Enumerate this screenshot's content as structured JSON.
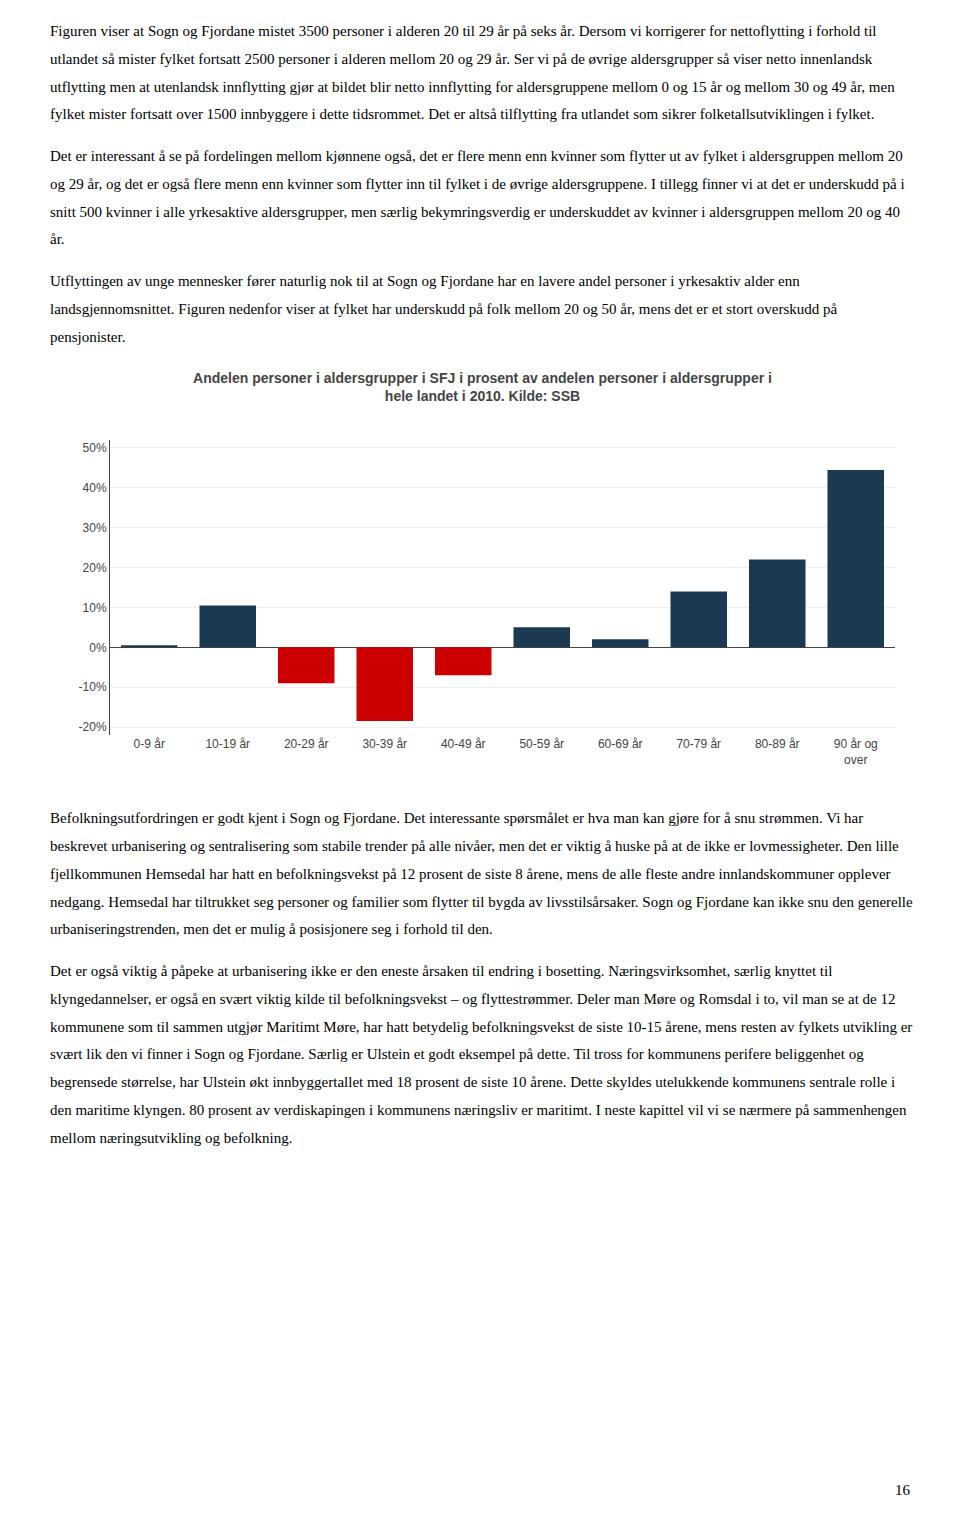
{
  "text_before": [
    "Figuren viser at Sogn og Fjordane mistet 3500 personer i alderen 20 til 29 år på seks år. Dersom vi korrigerer for nettoflytting i forhold til utlandet så mister fylket fortsatt 2500 personer i alderen mellom 20 og 29 år. Ser vi på de øvrige aldersgrupper så viser netto innenlandsk utflytting men at utenlandsk innflytting gjør at bildet blir netto innflytting for aldersgruppene mellom 0 og 15 år og mellom 30 og 49 år, men fylket mister fortsatt over 1500 innbyggere i dette tidsrommet. Det er altså tilflytting fra utlandet som sikrer folketallsutviklingen i fylket.",
    "Det er interessant å se på fordelingen mellom kjønnene også, det er flere menn enn kvinner som flytter ut av fylket i aldersgruppen mellom 20 og 29 år, og det er også flere menn enn kvinner som flytter inn til fylket i de øvrige aldersgruppene. I tillegg finner vi at det er underskudd på i snitt 500 kvinner i alle yrkesaktive aldersgrupper, men særlig bekymringsverdig er underskuddet av kvinner i aldersgruppen mellom 20 og 40 år.",
    "Utflyttingen av unge mennesker fører naturlig nok til at Sogn og Fjordane har en lavere andel personer i yrkesaktiv alder enn landsgjennomsnittet. Figuren nedenfor viser at fylket har underskudd på folk mellom 20 og 50 år, mens det er et stort overskudd på pensjonister."
  ],
  "chart_data": {
    "type": "bar",
    "title": "Andelen personer i aldersgrupper i SFJ i prosent av andelen personer i aldersgrupper i\nhele landet i 2010. Kilde: SSB",
    "categories": [
      "0-9 år",
      "10-19 år",
      "20-29 år",
      "30-39 år",
      "40-49 år",
      "50-59 år",
      "60-69 år",
      "70-79 år",
      "80-89 år",
      "90 år og\nover"
    ],
    "values": [
      0.5,
      10.5,
      -9.0,
      -18.5,
      -7.0,
      5.0,
      2.0,
      14.0,
      22.0,
      44.5
    ],
    "colors": [
      "#1b3a52",
      "#1b3a52",
      "#cc0000",
      "#cc0000",
      "#cc0000",
      "#1b3a52",
      "#1b3a52",
      "#1b3a52",
      "#1b3a52",
      "#1b3a52"
    ],
    "ylim": [
      -22,
      52
    ],
    "yticks": [
      {
        "value": -20,
        "label": "-20%"
      },
      {
        "value": -10,
        "label": "-10%"
      },
      {
        "value": 0,
        "label": "0%"
      },
      {
        "value": 10,
        "label": "10%"
      },
      {
        "value": 20,
        "label": "20%"
      },
      {
        "value": 30,
        "label": "30%"
      },
      {
        "value": 40,
        "label": "40%"
      },
      {
        "value": 50,
        "label": "50%"
      }
    ],
    "grid": true
  },
  "text_after": [
    "Befolkningsutfordringen er godt kjent i Sogn og Fjordane. Det interessante spørsmålet er hva man kan gjøre for å snu strømmen. Vi har beskrevet urbanisering og sentralisering som stabile trender på alle nivåer, men det er viktig å huske på at de ikke er lovmessigheter. Den lille fjellkommunen Hemsedal har hatt en befolkningsvekst på 12 prosent de siste 8 årene, mens de alle fleste andre innlandskommuner opplever nedgang. Hemsedal har tiltrukket seg personer og familier som flytter til bygda av livsstilsårsaker. Sogn og Fjordane kan ikke snu den generelle urbaniseringstrenden, men det er mulig å posisjonere seg i forhold til den.",
    "Det er også viktig å påpeke at urbanisering ikke er den eneste årsaken til endring i bosetting. Næringsvirksomhet, særlig knyttet til klyngedannelser, er også en svært viktig kilde til befolkningsvekst – og flyttestrømmer. Deler man Møre og Romsdal i to, vil man se at de 12 kommunene som til sammen utgjør Maritimt Møre, har hatt betydelig befolkningsvekst de siste 10-15 årene, mens resten av fylkets utvikling er svært lik den vi finner i Sogn og Fjordane. Særlig er Ulstein et godt eksempel på dette. Til tross for kommunens perifere beliggenhet og begrensede størrelse, har Ulstein økt innbyggertallet med 18 prosent de siste 10 årene. Dette skyldes utelukkende kommunens sentrale rolle i den maritime klyngen. 80 prosent av verdiskapingen i kommunens næringsliv er maritimt. I neste kapittel vil vi se nærmere på sammenhengen mellom næringsutvikling og befolkning."
  ],
  "page_number": "16"
}
